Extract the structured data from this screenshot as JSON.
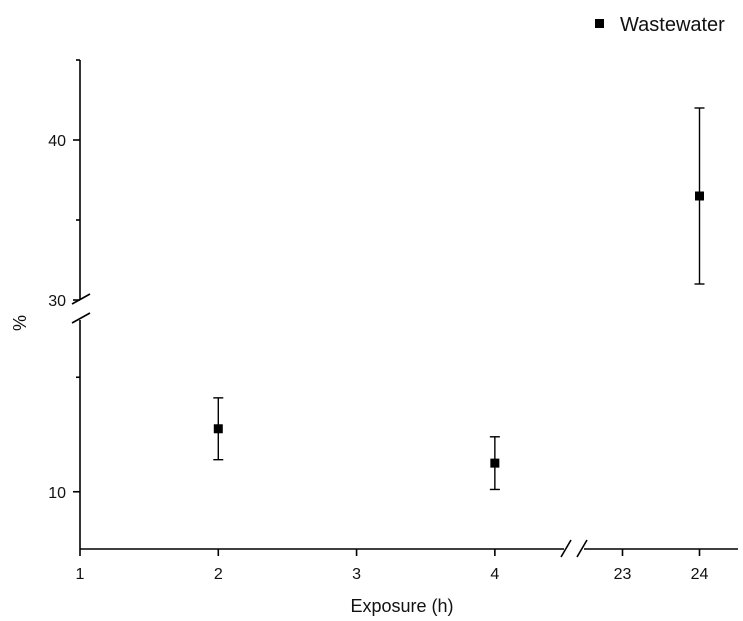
{
  "chart_data": {
    "type": "scatter",
    "title": "",
    "xlabel": "Exposure (h)",
    "ylabel": "%",
    "legend": {
      "position": "top-right",
      "entries": [
        "Wastewater"
      ]
    },
    "grid": false,
    "x_axis": {
      "broken": true,
      "segments": [
        {
          "range": [
            1,
            4.5
          ],
          "ticks": [
            1,
            2,
            3,
            4
          ]
        },
        {
          "range": [
            22.5,
            24.5
          ],
          "ticks": [
            23,
            24
          ]
        }
      ]
    },
    "y_axis": {
      "broken": true,
      "segments": [
        {
          "range": [
            5,
            25
          ],
          "ticks": [
            10
          ],
          "minor_ticks": [
            20
          ]
        },
        {
          "range": [
            30,
            45
          ],
          "ticks": [
            30,
            40
          ],
          "minor_ticks": [
            35,
            45
          ]
        }
      ]
    },
    "series": [
      {
        "name": "Wastewater",
        "marker": "square",
        "color": "#000000",
        "points": [
          {
            "x": 2,
            "y": 15.5,
            "err": 2.7
          },
          {
            "x": 4,
            "y": 12.5,
            "err": 2.3
          },
          {
            "x": 24,
            "y": 36.5,
            "err": 5.5
          }
        ]
      }
    ]
  }
}
